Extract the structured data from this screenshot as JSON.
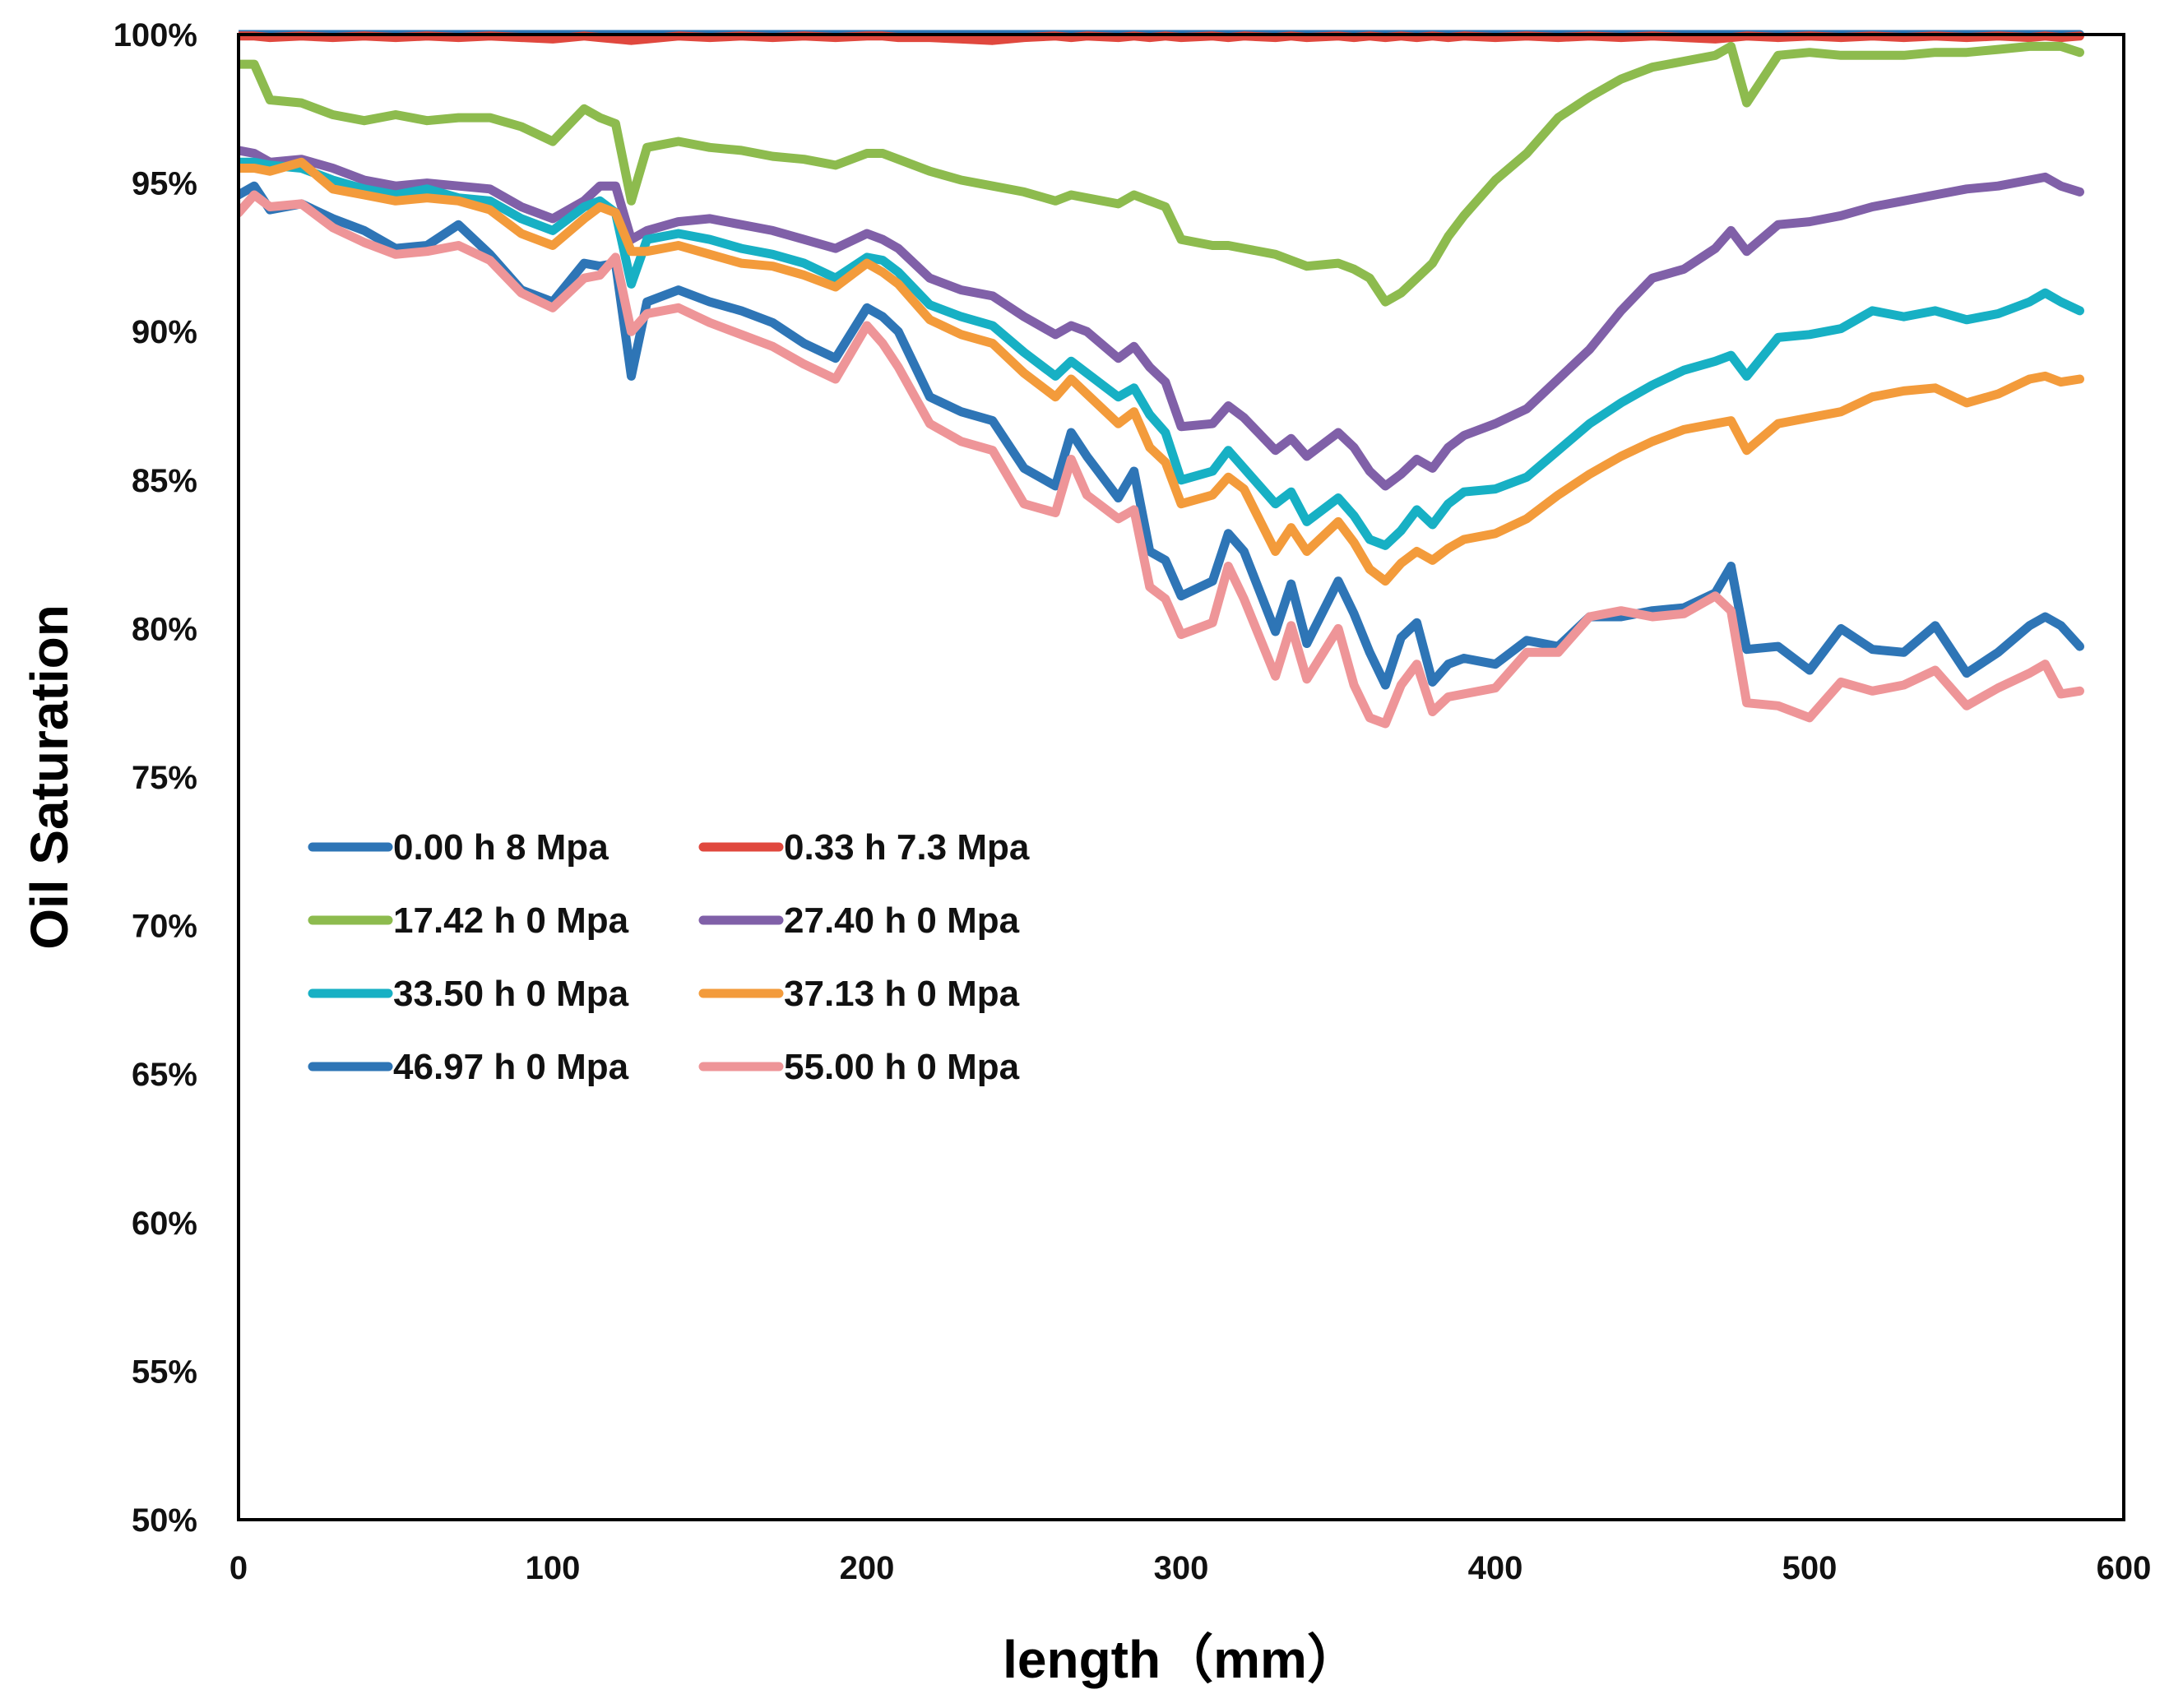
{
  "chart_data": {
    "type": "line",
    "title": "",
    "xlabel": "length（mm）",
    "ylabel": "Oil Saturation",
    "xlim": [
      0,
      600
    ],
    "ylim": [
      50,
      100
    ],
    "x_ticks": [
      0,
      100,
      200,
      300,
      400,
      500,
      600
    ],
    "x_tick_labels": [
      "0",
      "100",
      "200",
      "300",
      "400",
      "500",
      "600"
    ],
    "y_ticks": [
      50,
      55,
      60,
      65,
      70,
      75,
      80,
      85,
      90,
      95,
      100
    ],
    "y_tick_labels": [
      "50%",
      "55%",
      "60%",
      "65%",
      "70%",
      "75%",
      "80%",
      "85%",
      "90%",
      "95%",
      "100%"
    ],
    "grid": false,
    "legend_position": "center-left",
    "x": [
      0,
      5,
      10,
      20,
      30,
      40,
      50,
      60,
      70,
      80,
      90,
      100,
      110,
      115,
      120,
      125,
      130,
      140,
      150,
      160,
      170,
      180,
      190,
      200,
      205,
      210,
      220,
      230,
      240,
      250,
      260,
      265,
      270,
      280,
      285,
      290,
      295,
      300,
      310,
      315,
      320,
      330,
      335,
      340,
      350,
      355,
      360,
      365,
      370,
      375,
      380,
      385,
      390,
      400,
      410,
      420,
      430,
      440,
      450,
      460,
      470,
      475,
      480,
      490,
      500,
      510,
      520,
      530,
      540,
      550,
      560,
      570,
      575,
      580,
      586
    ],
    "series": [
      {
        "name": "0.00 h 8 Mpa",
        "color": "#2E75B6",
        "values": [
          100,
          100,
          100,
          100,
          100,
          100,
          100,
          100,
          100,
          100,
          100,
          100,
          100,
          100,
          100,
          100,
          100,
          100,
          100,
          100,
          100,
          100,
          100,
          100,
          100,
          100,
          100,
          100,
          100,
          100,
          100,
          100,
          100,
          100,
          100,
          100,
          100,
          100,
          100,
          100,
          100,
          100,
          100,
          100,
          100,
          100,
          100,
          100,
          100,
          100,
          100,
          100,
          100,
          100,
          100,
          100,
          100,
          100,
          100,
          100,
          100,
          100,
          100,
          100,
          100,
          100,
          100,
          100,
          100,
          100,
          100,
          100,
          100,
          100,
          100
        ]
      },
      {
        "name": "0.33 h 7.3 Mpa",
        "color": "#E0483E",
        "values": [
          99.95,
          99.95,
          99.9,
          99.95,
          99.9,
          99.95,
          99.9,
          99.95,
          99.9,
          99.95,
          99.9,
          99.85,
          99.95,
          99.9,
          99.85,
          99.8,
          99.85,
          99.95,
          99.9,
          99.95,
          99.9,
          99.95,
          99.9,
          99.95,
          99.95,
          99.9,
          99.9,
          99.85,
          99.8,
          99.9,
          99.95,
          99.9,
          99.95,
          99.9,
          99.95,
          99.9,
          99.95,
          99.9,
          99.95,
          99.9,
          99.95,
          99.9,
          99.95,
          99.9,
          99.95,
          99.9,
          99.95,
          99.9,
          99.95,
          99.9,
          99.95,
          99.9,
          99.95,
          99.9,
          99.95,
          99.9,
          99.95,
          99.9,
          99.95,
          99.9,
          99.85,
          99.9,
          99.95,
          99.9,
          99.95,
          99.9,
          99.95,
          99.9,
          99.95,
          99.9,
          99.95,
          99.9,
          99.95,
          99.9,
          99.95
        ]
      },
      {
        "name": "17.42 h 0 Mpa",
        "color": "#8DBB4E",
        "values": [
          99.0,
          99.0,
          97.8,
          97.7,
          97.3,
          97.1,
          97.3,
          97.1,
          97.2,
          97.2,
          96.9,
          96.4,
          97.5,
          97.2,
          97.0,
          94.4,
          96.2,
          96.4,
          96.2,
          96.1,
          95.9,
          95.8,
          95.6,
          96.0,
          96.0,
          95.8,
          95.4,
          95.1,
          94.9,
          94.7,
          94.4,
          94.6,
          94.5,
          94.3,
          94.6,
          94.4,
          94.2,
          93.1,
          92.9,
          92.9,
          92.8,
          92.6,
          92.4,
          92.2,
          92.3,
          92.1,
          91.8,
          91.0,
          91.3,
          91.8,
          92.3,
          93.2,
          93.9,
          95.1,
          96.0,
          97.2,
          97.9,
          98.5,
          98.9,
          99.1,
          99.3,
          99.6,
          97.7,
          99.3,
          99.4,
          99.3,
          99.3,
          99.3,
          99.4,
          99.4,
          99.5,
          99.6,
          99.6,
          99.6,
          99.4
        ]
      },
      {
        "name": "27.40 h 0 Mpa",
        "color": "#8060A8",
        "values": [
          96.1,
          96.0,
          95.7,
          95.8,
          95.5,
          95.1,
          94.9,
          95.0,
          94.9,
          94.8,
          94.2,
          93.8,
          94.4,
          94.9,
          94.9,
          93.1,
          93.4,
          93.7,
          93.8,
          93.6,
          93.4,
          93.1,
          92.8,
          93.3,
          93.1,
          92.8,
          91.8,
          91.4,
          91.2,
          90.5,
          89.9,
          90.2,
          90.0,
          89.1,
          89.5,
          88.8,
          88.3,
          86.8,
          86.9,
          87.5,
          87.1,
          86.0,
          86.4,
          85.8,
          86.6,
          86.1,
          85.3,
          84.8,
          85.2,
          85.7,
          85.4,
          86.1,
          86.5,
          86.9,
          87.4,
          88.4,
          89.4,
          90.7,
          91.8,
          92.1,
          92.8,
          93.4,
          92.7,
          93.6,
          93.7,
          93.9,
          94.2,
          94.4,
          94.6,
          94.8,
          94.9,
          95.1,
          95.2,
          94.9,
          94.7
        ]
      },
      {
        "name": "33.50 h 0 Mpa",
        "color": "#17B0C4",
        "values": [
          95.7,
          95.7,
          95.6,
          95.5,
          95.1,
          94.8,
          94.6,
          94.8,
          94.5,
          94.4,
          93.8,
          93.4,
          94.2,
          94.4,
          94.0,
          91.6,
          93.1,
          93.3,
          93.1,
          92.8,
          92.6,
          92.3,
          91.8,
          92.5,
          92.4,
          92.0,
          90.9,
          90.5,
          90.2,
          89.3,
          88.5,
          89.0,
          88.6,
          87.8,
          88.1,
          87.2,
          86.6,
          85.0,
          85.3,
          86.0,
          85.4,
          84.2,
          84.6,
          83.6,
          84.4,
          83.8,
          83.0,
          82.8,
          83.3,
          84.0,
          83.5,
          84.2,
          84.6,
          84.7,
          85.1,
          86.0,
          86.9,
          87.6,
          88.2,
          88.7,
          89.0,
          89.2,
          88.5,
          89.8,
          89.9,
          90.1,
          90.7,
          90.5,
          90.7,
          90.4,
          90.6,
          91.0,
          91.3,
          91.0,
          90.7
        ]
      },
      {
        "name": "37.13 h 0 Mpa",
        "color": "#F39B3B",
        "values": [
          95.5,
          95.5,
          95.4,
          95.7,
          94.8,
          94.6,
          94.4,
          94.5,
          94.4,
          94.1,
          93.3,
          92.9,
          93.8,
          94.2,
          94.0,
          92.7,
          92.7,
          92.9,
          92.6,
          92.3,
          92.2,
          91.9,
          91.5,
          92.3,
          92.0,
          91.6,
          90.4,
          89.9,
          89.6,
          88.6,
          87.8,
          88.4,
          87.9,
          86.9,
          87.3,
          86.1,
          85.6,
          84.2,
          84.5,
          85.1,
          84.7,
          82.6,
          83.4,
          82.6,
          83.6,
          82.9,
          82.0,
          81.6,
          82.2,
          82.6,
          82.3,
          82.7,
          83.0,
          83.2,
          83.7,
          84.5,
          85.2,
          85.8,
          86.3,
          86.7,
          86.9,
          87.0,
          86.0,
          86.9,
          87.1,
          87.3,
          87.8,
          88.0,
          88.1,
          87.6,
          87.9,
          88.4,
          88.5,
          88.3,
          88.4
        ]
      },
      {
        "name": "46.97 h 0 Mpa",
        "color": "#2E75B6",
        "values": [
          94.6,
          94.9,
          94.1,
          94.3,
          93.8,
          93.4,
          92.8,
          92.9,
          93.6,
          92.6,
          91.4,
          91.0,
          92.3,
          92.2,
          92.3,
          88.5,
          91.0,
          91.4,
          91.0,
          90.7,
          90.3,
          89.6,
          89.1,
          90.8,
          90.5,
          90.0,
          87.8,
          87.3,
          87.0,
          85.4,
          84.8,
          86.6,
          85.8,
          84.4,
          85.3,
          82.6,
          82.3,
          81.1,
          81.6,
          83.2,
          82.6,
          79.9,
          81.5,
          79.5,
          81.6,
          80.5,
          79.2,
          78.1,
          79.7,
          80.2,
          78.2,
          78.8,
          79.0,
          78.8,
          79.6,
          79.4,
          80.4,
          80.4,
          80.6,
          80.7,
          81.2,
          82.1,
          79.3,
          79.4,
          78.6,
          80.0,
          79.3,
          79.2,
          80.1,
          78.5,
          79.2,
          80.1,
          80.4,
          80.1,
          79.4
        ]
      },
      {
        "name": "55.00 h 0 Mpa",
        "color": "#EE9598",
        "values": [
          94.0,
          94.6,
          94.2,
          94.3,
          93.5,
          93.0,
          92.6,
          92.7,
          92.9,
          92.4,
          91.3,
          90.8,
          91.8,
          91.9,
          92.5,
          90.0,
          90.6,
          90.8,
          90.3,
          89.9,
          89.5,
          88.9,
          88.4,
          90.2,
          89.6,
          88.8,
          86.9,
          86.3,
          86.0,
          84.2,
          83.9,
          85.7,
          84.5,
          83.7,
          84.0,
          81.4,
          81.0,
          79.8,
          80.2,
          82.1,
          81.0,
          78.4,
          80.1,
          78.3,
          80.0,
          78.1,
          77.0,
          76.8,
          78.1,
          78.8,
          77.2,
          77.7,
          77.8,
          78.0,
          79.2,
          79.2,
          80.4,
          80.6,
          80.4,
          80.5,
          81.1,
          80.6,
          77.5,
          77.4,
          77.0,
          78.2,
          77.9,
          78.1,
          78.6,
          77.4,
          78.0,
          78.5,
          78.8,
          77.8,
          77.9
        ]
      }
    ]
  }
}
